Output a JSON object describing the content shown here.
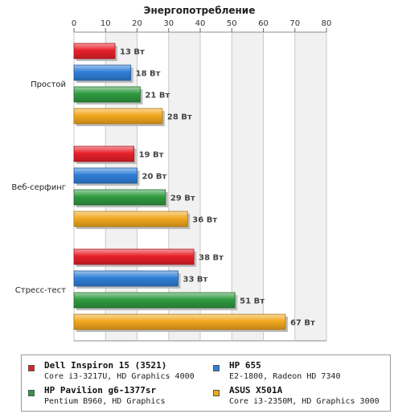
{
  "chart_data": {
    "type": "bar",
    "orientation": "horizontal",
    "title": "Энергопотребление",
    "xlabel": "",
    "ylabel": "",
    "xlim": [
      0,
      80
    ],
    "x_ticks": [
      "0",
      "10",
      "20",
      "30",
      "40",
      "50",
      "60",
      "70",
      "80"
    ],
    "grid": true,
    "legend_position": "bottom",
    "unit": "Вт",
    "categories": [
      "Простой",
      "Веб-серфинг",
      "Стресс-тест"
    ],
    "series": [
      {
        "name": "Dell Inspiron 15 (3521)",
        "spec": "Core i3-3217U, HD Graphics 4000",
        "color": "#e8202a",
        "values": [
          13,
          19,
          38
        ],
        "labels": [
          "13 Вт",
          "19 Вт",
          "38 Вт"
        ]
      },
      {
        "name": "HP 655",
        "spec": "E2-1800, Radeon HD 7340",
        "color": "#2f7fd8",
        "values": [
          18,
          20,
          33
        ],
        "labels": [
          "18 Вт",
          "20 Вт",
          "33 Вт"
        ]
      },
      {
        "name": "HP Pavilion g6-1377sr",
        "spec": "Pentium B960, HD Graphics",
        "color": "#2f9a40",
        "values": [
          21,
          29,
          51
        ],
        "labels": [
          "21 Вт",
          "29 Вт",
          "51 Вт"
        ]
      },
      {
        "name": "ASUS X501A",
        "spec": "Core i3-2350M, HD Graphics 3000",
        "color": "#f2a81e",
        "values": [
          28,
          36,
          67
        ],
        "labels": [
          "28 Вт",
          "36 Вт",
          "67 Вт"
        ]
      }
    ]
  }
}
